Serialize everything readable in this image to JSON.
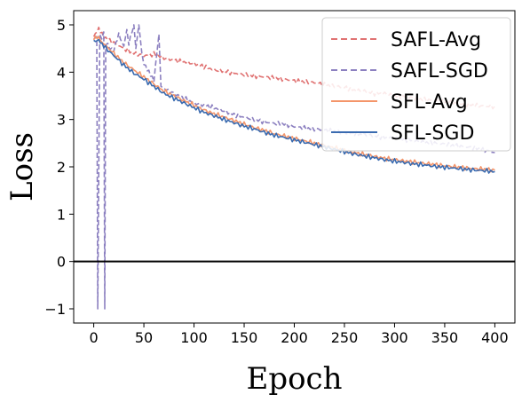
{
  "chart_data": {
    "type": "line",
    "xlabel": "Epoch",
    "ylabel": "Loss",
    "xlim": [
      -20,
      420
    ],
    "ylim": [
      -1.3,
      5.3
    ],
    "xticks": [
      0,
      50,
      100,
      150,
      200,
      250,
      300,
      350,
      400
    ],
    "yticks": [
      -1,
      0,
      1,
      2,
      3,
      4,
      5
    ],
    "hline": 0,
    "legend_position": "top-right",
    "series": [
      {
        "name": "SAFL-Avg",
        "color": "#e07272",
        "dash": "dashed",
        "points": [
          [
            0,
            4.75
          ],
          [
            5,
            4.9
          ],
          [
            10,
            4.75
          ],
          [
            20,
            4.62
          ],
          [
            30,
            4.5
          ],
          [
            40,
            4.4
          ],
          [
            50,
            4.35
          ],
          [
            60,
            4.38
          ],
          [
            70,
            4.3
          ],
          [
            80,
            4.25
          ],
          [
            90,
            4.22
          ],
          [
            100,
            4.18
          ],
          [
            110,
            4.12
          ],
          [
            120,
            4.05
          ],
          [
            130,
            4.02
          ],
          [
            140,
            3.98
          ],
          [
            150,
            3.95
          ],
          [
            160,
            3.92
          ],
          [
            170,
            3.9
          ],
          [
            180,
            3.88
          ],
          [
            190,
            3.85
          ],
          [
            200,
            3.82
          ],
          [
            210,
            3.8
          ],
          [
            220,
            3.78
          ],
          [
            230,
            3.74
          ],
          [
            240,
            3.7
          ],
          [
            250,
            3.68
          ],
          [
            260,
            3.62
          ],
          [
            270,
            3.6
          ],
          [
            280,
            3.55
          ],
          [
            290,
            3.55
          ],
          [
            300,
            3.5
          ],
          [
            310,
            3.48
          ],
          [
            320,
            3.45
          ],
          [
            330,
            3.42
          ],
          [
            340,
            3.4
          ],
          [
            350,
            3.38
          ],
          [
            360,
            3.35
          ],
          [
            370,
            3.32
          ],
          [
            380,
            3.3
          ],
          [
            390,
            3.28
          ],
          [
            400,
            3.28
          ]
        ]
      },
      {
        "name": "SAFL-SGD",
        "color": "#8c80c0",
        "dash": "dashed",
        "points": [
          [
            0,
            4.7
          ],
          [
            3,
            4.75
          ],
          [
            4,
            -1.0
          ],
          [
            6,
            4.8
          ],
          [
            8,
            4.7
          ],
          [
            10,
            4.85
          ],
          [
            11,
            -1.0
          ],
          [
            12,
            4.6
          ],
          [
            20,
            4.45
          ],
          [
            25,
            4.8
          ],
          [
            30,
            4.55
          ],
          [
            33,
            4.9
          ],
          [
            35,
            4.6
          ],
          [
            40,
            5.0
          ],
          [
            42,
            4.5
          ],
          [
            45,
            5.0
          ],
          [
            48,
            4.4
          ],
          [
            50,
            4.2
          ],
          [
            55,
            4.0
          ],
          [
            60,
            3.8
          ],
          [
            65,
            4.8
          ],
          [
            67,
            3.7
          ],
          [
            70,
            3.65
          ],
          [
            80,
            3.55
          ],
          [
            90,
            3.45
          ],
          [
            100,
            3.35
          ],
          [
            110,
            3.3
          ],
          [
            120,
            3.25
          ],
          [
            130,
            3.18
          ],
          [
            140,
            3.1
          ],
          [
            150,
            3.05
          ],
          [
            160,
            3.0
          ],
          [
            170,
            2.95
          ],
          [
            180,
            2.92
          ],
          [
            190,
            2.9
          ],
          [
            200,
            2.85
          ],
          [
            210,
            2.82
          ],
          [
            220,
            2.8
          ],
          [
            230,
            2.78
          ],
          [
            240,
            2.75
          ],
          [
            250,
            2.72
          ],
          [
            260,
            2.7
          ],
          [
            270,
            2.68
          ],
          [
            280,
            2.65
          ],
          [
            290,
            2.62
          ],
          [
            300,
            2.6
          ],
          [
            310,
            2.58
          ],
          [
            320,
            2.55
          ],
          [
            330,
            2.52
          ],
          [
            340,
            2.5
          ],
          [
            350,
            2.48
          ],
          [
            360,
            2.45
          ],
          [
            370,
            2.42
          ],
          [
            380,
            2.4
          ],
          [
            390,
            2.35
          ],
          [
            400,
            2.3
          ]
        ]
      },
      {
        "name": "SFL-Avg",
        "color": "#f4956a",
        "dash": "solid",
        "points": [
          [
            0,
            4.7
          ],
          [
            5,
            4.75
          ],
          [
            10,
            4.6
          ],
          [
            20,
            4.4
          ],
          [
            30,
            4.2
          ],
          [
            40,
            4.05
          ],
          [
            50,
            3.9
          ],
          [
            60,
            3.75
          ],
          [
            70,
            3.6
          ],
          [
            80,
            3.5
          ],
          [
            90,
            3.4
          ],
          [
            100,
            3.3
          ],
          [
            110,
            3.2
          ],
          [
            120,
            3.12
          ],
          [
            130,
            3.05
          ],
          [
            140,
            2.98
          ],
          [
            150,
            2.9
          ],
          [
            160,
            2.83
          ],
          [
            170,
            2.77
          ],
          [
            180,
            2.7
          ],
          [
            190,
            2.65
          ],
          [
            200,
            2.6
          ],
          [
            210,
            2.55
          ],
          [
            220,
            2.5
          ],
          [
            230,
            2.45
          ],
          [
            240,
            2.4
          ],
          [
            250,
            2.35
          ],
          [
            260,
            2.3
          ],
          [
            270,
            2.26
          ],
          [
            280,
            2.22
          ],
          [
            290,
            2.18
          ],
          [
            300,
            2.15
          ],
          [
            310,
            2.12
          ],
          [
            320,
            2.1
          ],
          [
            330,
            2.07
          ],
          [
            340,
            2.05
          ],
          [
            350,
            2.02
          ],
          [
            360,
            2.0
          ],
          [
            370,
            1.98
          ],
          [
            380,
            1.96
          ],
          [
            390,
            1.95
          ],
          [
            400,
            1.93
          ]
        ]
      },
      {
        "name": "SFL-SGD",
        "color": "#3a6bb0",
        "dash": "solid",
        "points": [
          [
            0,
            4.65
          ],
          [
            5,
            4.7
          ],
          [
            10,
            4.55
          ],
          [
            20,
            4.35
          ],
          [
            30,
            4.15
          ],
          [
            40,
            3.98
          ],
          [
            50,
            3.85
          ],
          [
            60,
            3.7
          ],
          [
            70,
            3.55
          ],
          [
            80,
            3.45
          ],
          [
            90,
            3.35
          ],
          [
            100,
            3.25
          ],
          [
            110,
            3.15
          ],
          [
            120,
            3.08
          ],
          [
            130,
            3.0
          ],
          [
            140,
            2.93
          ],
          [
            150,
            2.86
          ],
          [
            160,
            2.8
          ],
          [
            170,
            2.73
          ],
          [
            180,
            2.67
          ],
          [
            190,
            2.62
          ],
          [
            200,
            2.57
          ],
          [
            210,
            2.52
          ],
          [
            220,
            2.47
          ],
          [
            230,
            2.42
          ],
          [
            240,
            2.37
          ],
          [
            250,
            2.32
          ],
          [
            260,
            2.27
          ],
          [
            270,
            2.23
          ],
          [
            280,
            2.19
          ],
          [
            290,
            2.15
          ],
          [
            300,
            2.12
          ],
          [
            310,
            2.09
          ],
          [
            320,
            2.06
          ],
          [
            330,
            2.04
          ],
          [
            340,
            2.01
          ],
          [
            350,
            1.99
          ],
          [
            360,
            1.97
          ],
          [
            370,
            1.95
          ],
          [
            380,
            1.93
          ],
          [
            390,
            1.92
          ],
          [
            400,
            1.9
          ]
        ]
      }
    ]
  }
}
